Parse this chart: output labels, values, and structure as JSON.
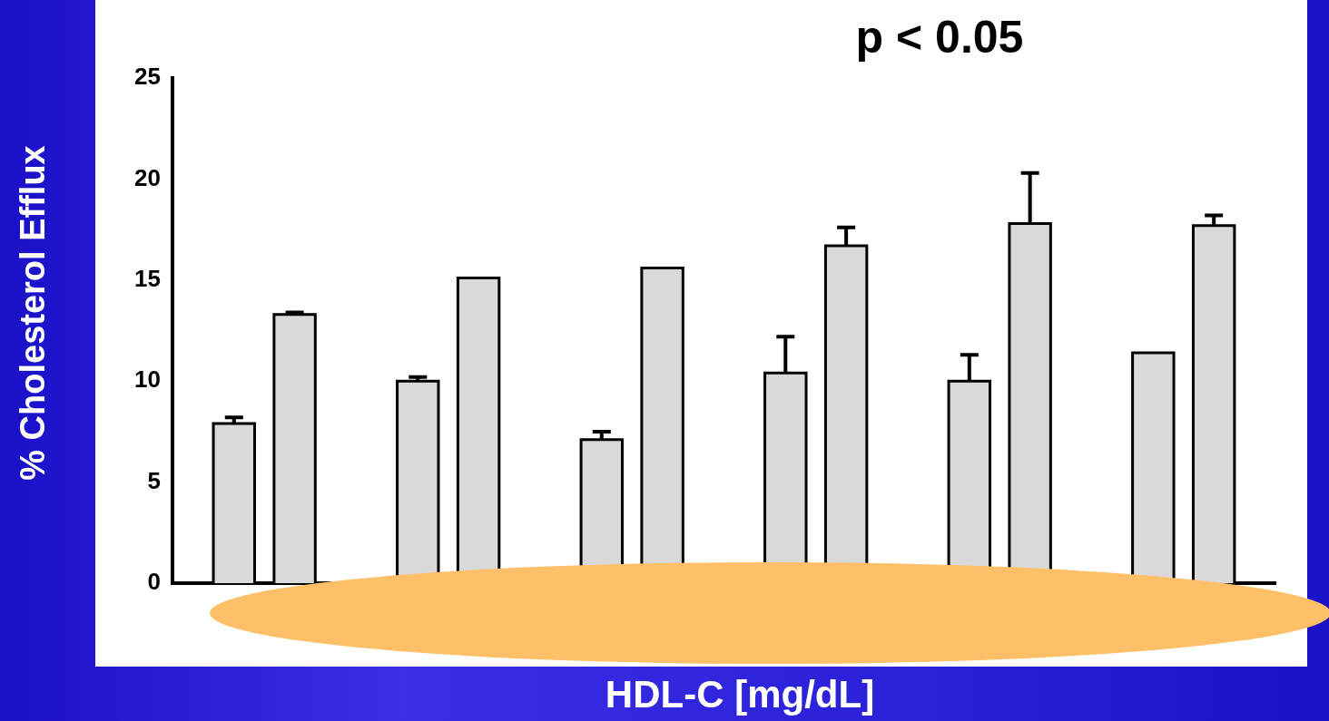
{
  "chart_data": {
    "type": "bar",
    "title": "p < 0.05",
    "xlabel": "HDL-C [mg/dL]",
    "ylabel": "% Cholesterol Efflux",
    "categories": [
      null,
      null,
      null,
      null,
      null,
      null
    ],
    "series": [
      {
        "color": "#d9d9d9",
        "values": [
          7.9,
          10.0,
          7.1,
          10.4,
          10.0,
          11.4
        ],
        "errors": [
          [
            7.9,
            8.2
          ],
          [
            10.0,
            10.2
          ],
          [
            7.1,
            7.5
          ],
          [
            10.4,
            12.2
          ],
          [
            10.0,
            11.3
          ],
          null
        ]
      },
      {
        "color": "#d9d9d9",
        "values": [
          13.3,
          15.1,
          15.6,
          16.7,
          17.8,
          17.7
        ],
        "errors": [
          [
            13.3,
            13.4
          ],
          null,
          null,
          [
            16.7,
            17.6
          ],
          [
            17.8,
            20.3
          ],
          [
            17.7,
            18.2
          ]
        ]
      }
    ],
    "ylim": [
      0,
      25
    ],
    "yticks": [
      0,
      5,
      10,
      15,
      20,
      25
    ],
    "grid": false,
    "legend": false,
    "tick_labels": "y"
  }
}
